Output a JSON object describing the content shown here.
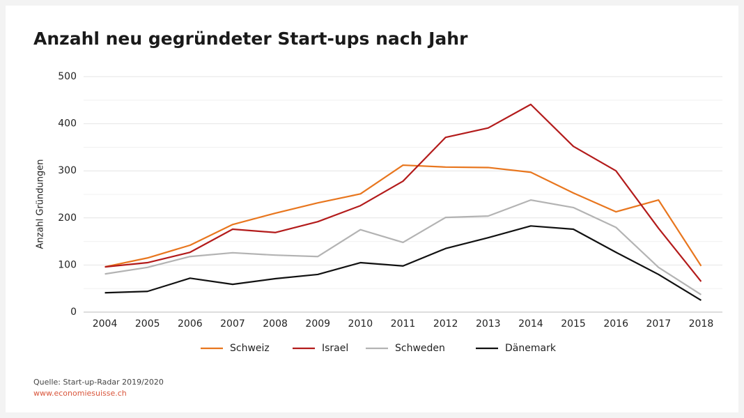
{
  "chart_data": {
    "type": "line",
    "title": "Anzahl neu gegründeter Start-ups nach Jahr",
    "y_label": "Anzahl Gründungen",
    "categories": [
      "2004",
      "2005",
      "2006",
      "2007",
      "2008",
      "2009",
      "2010",
      "2011",
      "2012",
      "2013",
      "2014",
      "2015",
      "2016",
      "2017",
      "2018"
    ],
    "series": [
      {
        "name": "Schweiz",
        "color": "#e8761e",
        "values": [
          96,
          115,
          142,
          186,
          210,
          232,
          251,
          312,
          308,
          307,
          297,
          253,
          213,
          238,
          98
        ]
      },
      {
        "name": "Israel",
        "color": "#b31b1b",
        "values": [
          96,
          105,
          127,
          176,
          169,
          192,
          226,
          278,
          371,
          391,
          441,
          352,
          300,
          178,
          65
        ]
      },
      {
        "name": "Schweden",
        "color": "#b3b3b3",
        "values": [
          81,
          95,
          118,
          126,
          121,
          118,
          175,
          148,
          201,
          204,
          238,
          222,
          180,
          95,
          37
        ]
      },
      {
        "name": "Dänemark",
        "color": "#111111",
        "values": [
          41,
          44,
          72,
          59,
          71,
          80,
          105,
          98,
          135,
          158,
          183,
          176,
          127,
          80,
          25
        ]
      }
    ],
    "ylim": [
      0,
      500
    ],
    "yticks": [
      0,
      100,
      200,
      300,
      400,
      500
    ],
    "minor_yticks": [
      50,
      150,
      250,
      350,
      450
    ],
    "grid": true,
    "legend": "bottom",
    "source": "Quelle: Start-up-Radar 2019/2020",
    "url": "www.economiesuisse.ch"
  }
}
